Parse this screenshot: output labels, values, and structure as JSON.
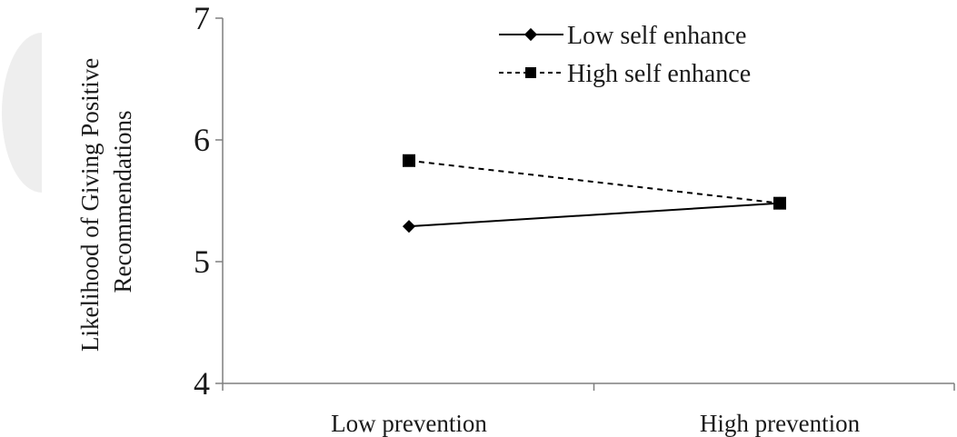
{
  "chart_data": {
    "type": "line",
    "categories": [
      "Low prevention",
      "High prevention"
    ],
    "series": [
      {
        "name": "Low self enhance",
        "values": [
          5.29,
          5.48
        ],
        "marker": "diamond",
        "line": "solid",
        "color": "#000000"
      },
      {
        "name": "High self enhance",
        "values": [
          5.83,
          5.48
        ],
        "marker": "square",
        "line": "dashed",
        "color": "#000000"
      }
    ],
    "ylabel_lines": [
      "Likelihood of Giving Positive",
      "Recommendations"
    ],
    "ylim": [
      4,
      7
    ],
    "yticks": [
      "4",
      "5",
      "6",
      "7"
    ],
    "grid": false,
    "legend_position": "top"
  }
}
